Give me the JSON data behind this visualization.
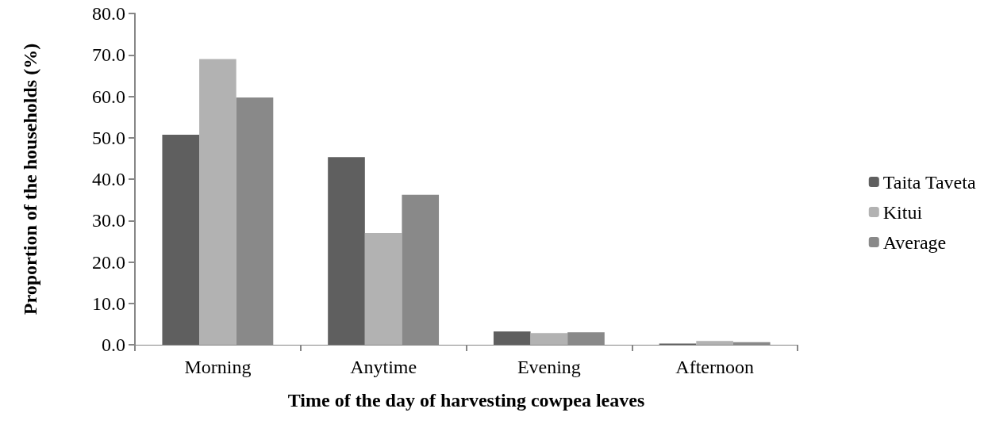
{
  "chart_data": {
    "type": "bar",
    "xlabel": "Time of the day of harvesting cowpea leaves",
    "ylabel": "Proportion of the households (%)",
    "categories": [
      "Morning",
      "Anytime",
      "Evening",
      "Afternoon"
    ],
    "series": [
      {
        "name": "Taita Taveta",
        "color": "#5f5f5f",
        "values": [
          50.7,
          45.3,
          3.2,
          0.3
        ]
      },
      {
        "name": "Kitui",
        "color": "#b2b2b2",
        "values": [
          69.0,
          27.0,
          2.8,
          0.9
        ]
      },
      {
        "name": "Average",
        "color": "#898989",
        "values": [
          59.7,
          36.2,
          3.0,
          0.6
        ]
      }
    ],
    "ylim": [
      0,
      80
    ],
    "yticks": [
      {
        "value": 0,
        "label": "0.0"
      },
      {
        "value": 10,
        "label": "10.0"
      },
      {
        "value": 20,
        "label": "20.0"
      },
      {
        "value": 30,
        "label": "30.0"
      },
      {
        "value": 40,
        "label": "40.0"
      },
      {
        "value": 50,
        "label": "50.0"
      },
      {
        "value": 60,
        "label": "60.0"
      },
      {
        "value": 70,
        "label": "70.0"
      },
      {
        "value": 80,
        "label": "80.0"
      }
    ],
    "grid": false,
    "legend": "right"
  }
}
